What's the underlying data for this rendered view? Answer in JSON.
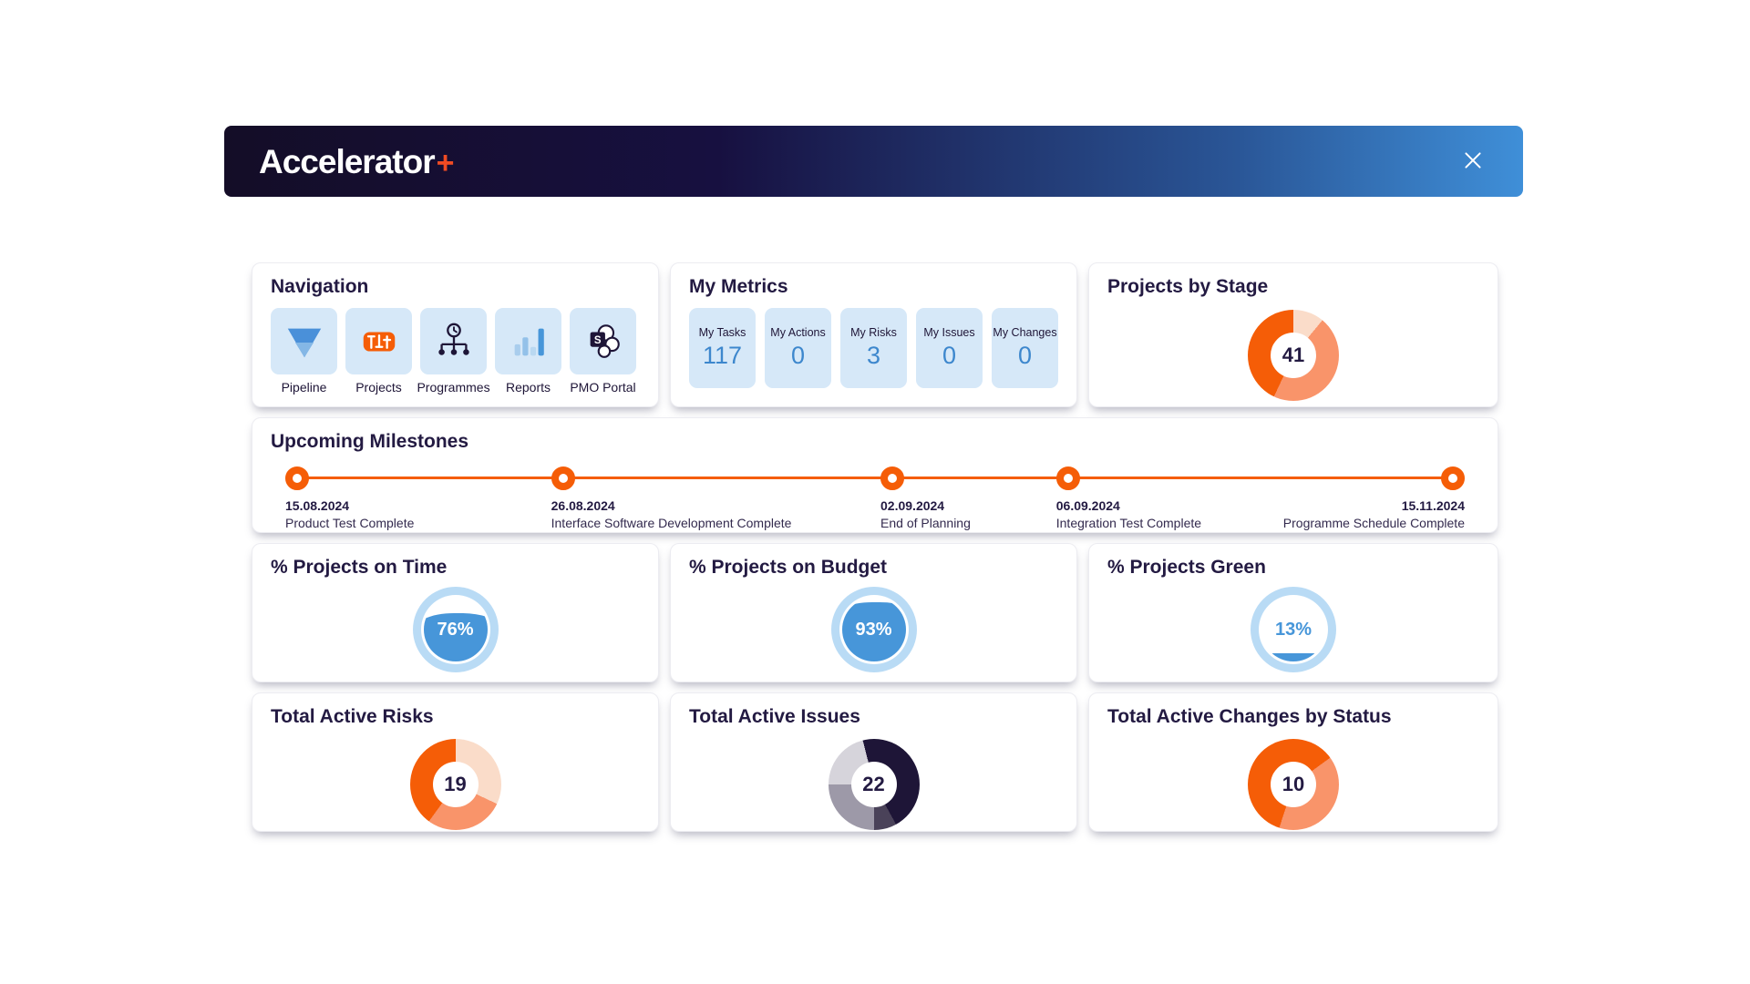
{
  "header": {
    "logo_text": "Accelerator",
    "logo_plus": "+",
    "gradient_left": "#140d27",
    "gradient_right": "#3f8fd8",
    "accent_orange": "#f04b23"
  },
  "navigation": {
    "title": "Navigation",
    "items": [
      {
        "label": "Pipeline",
        "icon": "funnel-icon"
      },
      {
        "label": "Projects",
        "icon": "sliders-icon"
      },
      {
        "label": "Programmes",
        "icon": "clock-orgchart-icon"
      },
      {
        "label": "Reports",
        "icon": "bar-chart-icon"
      },
      {
        "label": "PMO Portal",
        "icon": "sharepoint-icon"
      }
    ]
  },
  "my_metrics": {
    "title": "My Metrics",
    "tiles": [
      {
        "label": "My Tasks",
        "value": "117"
      },
      {
        "label": "My Actions",
        "value": "0"
      },
      {
        "label": "My Risks",
        "value": "3"
      },
      {
        "label": "My Issues",
        "value": "0"
      },
      {
        "label": "My Changes",
        "value": "0"
      }
    ]
  },
  "milestones": {
    "title": "Upcoming Milestones",
    "line_color": "#f55d07",
    "items": [
      {
        "date": "15.08.2024",
        "label": "Product Test Complete",
        "pos_pct": 0,
        "align": "left"
      },
      {
        "date": "26.08.2024",
        "label": "Interface Software Development Complete",
        "pos_pct": 23,
        "align": "left"
      },
      {
        "date": "02.09.2024",
        "label": "End of Planning",
        "pos_pct": 51.5,
        "align": "left"
      },
      {
        "date": "06.09.2024",
        "label": "Integration Test Complete",
        "pos_pct": 66.7,
        "align": "left"
      },
      {
        "date": "15.11.2024",
        "label": "Programme Schedule Complete",
        "pos_pct": 100,
        "align": "right"
      }
    ]
  },
  "chart_data": [
    {
      "id": "projects_by_stage",
      "type": "donut",
      "title": "Projects by Stage",
      "total": "41",
      "legend_position": "none",
      "segments": [
        {
          "name": "stage-light",
          "color": "#fadcc9",
          "pct": 11
        },
        {
          "name": "stage-medium",
          "color": "#f9946a",
          "pct": 46
        },
        {
          "name": "stage-dark",
          "color": "#f55d07",
          "pct": 43
        }
      ]
    },
    {
      "id": "on_time",
      "type": "gauge",
      "title": "% Projects on Time",
      "value": 76,
      "display": "76%",
      "fill": "#4796d9",
      "ring": "#b9dbf5",
      "value_color": "#ffffff"
    },
    {
      "id": "on_budget",
      "type": "gauge",
      "title": "% Projects on Budget",
      "value": 93,
      "display": "93%",
      "fill": "#4796d9",
      "ring": "#b9dbf5",
      "value_color": "#ffffff"
    },
    {
      "id": "green",
      "type": "gauge",
      "title": "% Projects Green",
      "value": 13,
      "display": "13%",
      "fill": "#4796d9",
      "ring": "#b9dbf5",
      "value_color": "#4796d9"
    },
    {
      "id": "risks",
      "type": "donut",
      "title": "Total Active Risks",
      "total": "19",
      "legend_position": "none",
      "segments": [
        {
          "name": "risk-light",
          "color": "#fadcc9",
          "pct": 32
        },
        {
          "name": "risk-medium",
          "color": "#f9946a",
          "pct": 28
        },
        {
          "name": "risk-dark",
          "color": "#f55d07",
          "pct": 40
        }
      ]
    },
    {
      "id": "issues",
      "type": "donut",
      "title": "Total Active Issues",
      "total": "22",
      "legend_position": "none",
      "segments": [
        {
          "name": "issue-navy",
          "color": "#1e1537",
          "pct": 42
        },
        {
          "name": "issue-slate",
          "color": "#4a4259",
          "pct": 8
        },
        {
          "name": "issue-gray",
          "color": "#9d99a8",
          "pct": 25
        },
        {
          "name": "issue-lightgray",
          "color": "#d6d4db",
          "pct": 21
        },
        {
          "name": "issue-navy-2",
          "color": "#1e1537",
          "pct": 4
        }
      ]
    },
    {
      "id": "changes",
      "type": "donut",
      "title": "Total Active Changes by Status",
      "total": "10",
      "legend_position": "none",
      "segments": [
        {
          "name": "change-dark",
          "color": "#f55d07",
          "pct": 15
        },
        {
          "name": "change-medium",
          "color": "#f9946a",
          "pct": 40
        },
        {
          "name": "change-dark-2",
          "color": "#f55d07",
          "pct": 45
        }
      ]
    }
  ]
}
